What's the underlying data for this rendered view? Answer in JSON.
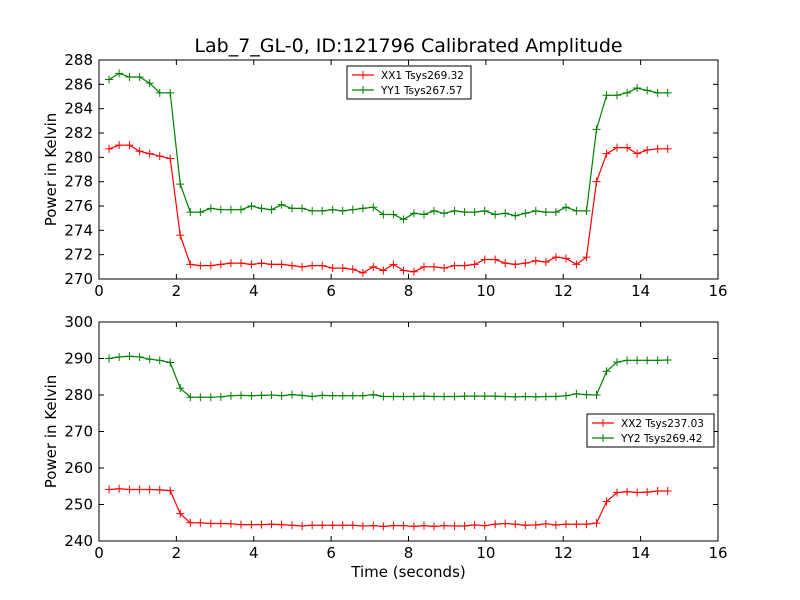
{
  "chart_data": [
    {
      "type": "line",
      "title": "Lab_7_GL-0, ID:121796 Calibrated Amplitude",
      "xlabel": "",
      "ylabel": "Power in Kelvin",
      "xlim": [
        0,
        16
      ],
      "ylim": [
        270,
        288
      ],
      "xticks": [
        "0",
        "2",
        "4",
        "6",
        "8",
        "10",
        "12",
        "14",
        "16"
      ],
      "yticks": [
        "270",
        "272",
        "274",
        "276",
        "278",
        "280",
        "282",
        "284",
        "286",
        "288"
      ],
      "legend_position": "upper-center",
      "x": [
        0.26,
        0.52,
        0.79,
        1.05,
        1.31,
        1.57,
        1.84,
        2.1,
        2.36,
        2.62,
        2.89,
        3.15,
        3.41,
        3.67,
        3.94,
        4.2,
        4.46,
        4.72,
        4.99,
        5.25,
        5.51,
        5.77,
        6.04,
        6.3,
        6.56,
        6.82,
        7.09,
        7.35,
        7.61,
        7.87,
        8.14,
        8.4,
        8.66,
        8.92,
        9.19,
        9.45,
        9.71,
        9.97,
        10.24,
        10.5,
        10.76,
        11.02,
        11.29,
        11.55,
        11.81,
        12.07,
        12.34,
        12.6,
        12.86,
        13.12,
        13.39,
        13.65,
        13.91,
        14.17,
        14.44,
        14.7
      ],
      "series": [
        {
          "name": "XX1 Tsys269.32",
          "color": "#ff0000",
          "values": [
            280.7,
            281.0,
            281.0,
            280.5,
            280.3,
            280.1,
            279.9,
            273.6,
            271.2,
            271.1,
            271.1,
            271.2,
            271.3,
            271.3,
            271.2,
            271.3,
            271.2,
            271.2,
            271.1,
            271.0,
            271.1,
            271.1,
            270.9,
            270.9,
            270.8,
            270.5,
            271.0,
            270.7,
            271.2,
            270.7,
            270.6,
            271.0,
            271.0,
            270.9,
            271.1,
            271.1,
            271.2,
            271.6,
            271.6,
            271.3,
            271.2,
            271.3,
            271.5,
            271.4,
            271.8,
            271.7,
            271.2,
            271.8,
            278.0,
            280.3,
            280.8,
            280.8,
            280.3,
            280.6,
            280.7,
            280.7
          ]
        },
        {
          "name": "YY1 Tsys267.57",
          "color": "#008000",
          "values": [
            286.4,
            286.9,
            286.6,
            286.6,
            286.1,
            285.3,
            285.3,
            277.8,
            275.5,
            275.5,
            275.8,
            275.7,
            275.7,
            275.7,
            276.0,
            275.8,
            275.7,
            276.1,
            275.8,
            275.8,
            275.6,
            275.6,
            275.7,
            275.6,
            275.7,
            275.8,
            275.9,
            275.3,
            275.3,
            274.9,
            275.4,
            275.3,
            275.6,
            275.4,
            275.6,
            275.5,
            275.5,
            275.6,
            275.3,
            275.4,
            275.2,
            275.4,
            275.6,
            275.5,
            275.5,
            275.9,
            275.6,
            275.6,
            282.3,
            285.1,
            285.1,
            285.3,
            285.7,
            285.5,
            285.3,
            285.3
          ]
        }
      ]
    },
    {
      "type": "line",
      "title": "",
      "xlabel": "Time (seconds)",
      "ylabel": "Power in Kelvin",
      "xlim": [
        0,
        16
      ],
      "ylim": [
        240,
        300
      ],
      "xticks": [
        "0",
        "2",
        "4",
        "6",
        "8",
        "10",
        "12",
        "14",
        "16"
      ],
      "yticks": [
        "240",
        "250",
        "260",
        "270",
        "280",
        "290",
        "300"
      ],
      "legend_position": "center-right",
      "x": [
        0.26,
        0.52,
        0.79,
        1.05,
        1.31,
        1.57,
        1.84,
        2.1,
        2.36,
        2.62,
        2.89,
        3.15,
        3.41,
        3.67,
        3.94,
        4.2,
        4.46,
        4.72,
        4.99,
        5.25,
        5.51,
        5.77,
        6.04,
        6.3,
        6.56,
        6.82,
        7.09,
        7.35,
        7.61,
        7.87,
        8.14,
        8.4,
        8.66,
        8.92,
        9.19,
        9.45,
        9.71,
        9.97,
        10.24,
        10.5,
        10.76,
        11.02,
        11.29,
        11.55,
        11.81,
        12.07,
        12.34,
        12.6,
        12.86,
        13.12,
        13.39,
        13.65,
        13.91,
        14.17,
        14.44,
        14.7
      ],
      "series": [
        {
          "name": "XX2 Tsys237.03",
          "color": "#ff0000",
          "values": [
            254.1,
            254.3,
            254.1,
            254.1,
            254.1,
            254.0,
            253.8,
            247.5,
            245.0,
            245.0,
            244.8,
            244.8,
            244.7,
            244.5,
            244.5,
            244.5,
            244.6,
            244.5,
            244.3,
            244.1,
            244.3,
            244.3,
            244.3,
            244.3,
            244.3,
            244.1,
            244.2,
            244.0,
            244.2,
            244.2,
            244.0,
            244.2,
            244.0,
            244.2,
            244.1,
            244.1,
            244.4,
            244.2,
            244.6,
            244.8,
            244.6,
            244.3,
            244.4,
            244.7,
            244.4,
            244.6,
            244.6,
            244.6,
            244.9,
            250.8,
            253.3,
            253.5,
            253.3,
            253.4,
            253.7,
            253.7
          ]
        },
        {
          "name": "YY2 Tsys269.42",
          "color": "#008000",
          "values": [
            290.0,
            290.4,
            290.6,
            290.4,
            289.8,
            289.5,
            288.9,
            281.9,
            279.4,
            279.4,
            279.4,
            279.5,
            279.8,
            279.9,
            279.8,
            279.9,
            280.0,
            279.8,
            280.1,
            279.9,
            279.6,
            279.9,
            279.8,
            279.8,
            279.8,
            279.8,
            280.1,
            279.6,
            279.6,
            279.6,
            279.6,
            279.7,
            279.6,
            279.6,
            279.6,
            279.7,
            279.7,
            279.7,
            279.7,
            279.6,
            279.5,
            279.6,
            279.5,
            279.6,
            279.6,
            279.8,
            280.3,
            280.1,
            280.0,
            286.5,
            289.0,
            289.5,
            289.5,
            289.5,
            289.5,
            289.6
          ]
        }
      ]
    }
  ]
}
